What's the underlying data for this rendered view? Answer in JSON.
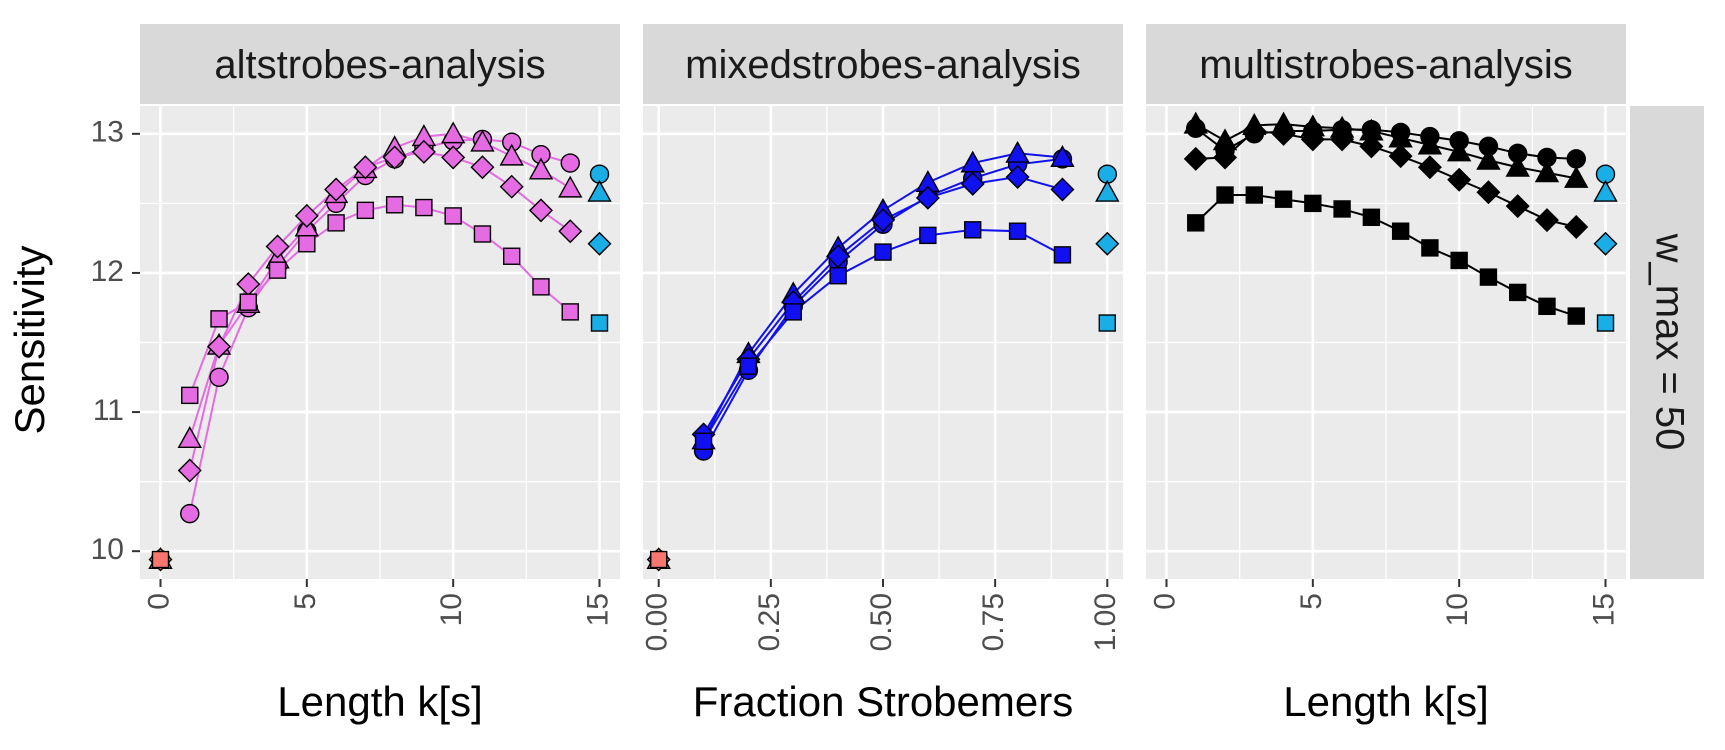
{
  "chart_data": {
    "type": "scatter",
    "y_label": "Sensitivity",
    "facet_label": "w_max = 50",
    "ylim": [
      9.8,
      13.2
    ],
    "y_ticks": [
      "10",
      "11",
      "12",
      "13"
    ],
    "y_tick_values": [
      10,
      11,
      12,
      13
    ],
    "colors": {
      "altstrobes": "#E56BE3",
      "mixedstrobes": "#1010F0",
      "multistrobes": "#000000",
      "reference": "#1AAEE6",
      "baseline": "#F8766D"
    },
    "marker_shapes": [
      "circle",
      "triangle",
      "diamond",
      "square"
    ],
    "panels": [
      {
        "title": "altstrobes-analysis",
        "xlabel": "Length k[s]",
        "xlim": [
          -0.7,
          15.7
        ],
        "x_ticks": [
          "0",
          "5",
          "10",
          "15"
        ],
        "x_tick_values": [
          0,
          5,
          10,
          15
        ],
        "color_key": "altstrobes",
        "baseline": {
          "x": 0,
          "y": 9.94
        },
        "reference_x": 15,
        "series": [
          {
            "shape": "circle",
            "x": [
              1,
              2,
              3,
              4,
              5,
              6,
              7,
              8,
              9,
              10,
              11,
              12,
              13,
              14
            ],
            "y": [
              10.27,
              11.25,
              11.75,
              12.05,
              12.3,
              12.5,
              12.7,
              12.82,
              12.9,
              12.95,
              12.96,
              12.94,
              12.85,
              12.79
            ]
          },
          {
            "shape": "triangle",
            "x": [
              1,
              2,
              3,
              4,
              5,
              6,
              7,
              8,
              9,
              10,
              11,
              12,
              13,
              14
            ],
            "y": [
              10.81,
              11.48,
              11.78,
              12.1,
              12.33,
              12.57,
              12.75,
              12.9,
              12.98,
              13.0,
              12.94,
              12.84,
              12.74,
              12.61
            ]
          },
          {
            "shape": "diamond",
            "x": [
              1,
              2,
              3,
              4,
              5,
              6,
              7,
              8,
              9,
              10,
              11,
              12,
              13,
              14
            ],
            "y": [
              10.58,
              11.47,
              11.92,
              12.19,
              12.41,
              12.6,
              12.76,
              12.83,
              12.87,
              12.83,
              12.76,
              12.62,
              12.45,
              12.3
            ]
          },
          {
            "shape": "square",
            "x": [
              1,
              2,
              3,
              4,
              5,
              6,
              7,
              8,
              9,
              10,
              11,
              12,
              13,
              14
            ],
            "y": [
              11.12,
              11.67,
              11.79,
              12.02,
              12.21,
              12.36,
              12.45,
              12.49,
              12.47,
              12.41,
              12.28,
              12.12,
              11.9,
              11.72
            ]
          }
        ]
      },
      {
        "title": "mixedstrobes-analysis",
        "xlabel": "Fraction Strobemers",
        "xlim": [
          -0.035,
          1.035
        ],
        "x_ticks": [
          "0.00",
          "0.25",
          "0.50",
          "0.75",
          "1.00"
        ],
        "x_tick_values": [
          0,
          0.25,
          0.5,
          0.75,
          1.0
        ],
        "color_key": "mixedstrobes",
        "baseline": {
          "x": 0,
          "y": 9.94
        },
        "reference_x": 1.0,
        "series": [
          {
            "shape": "circle",
            "x": [
              0.1,
              0.2,
              0.3,
              0.4,
              0.5,
              0.6,
              0.7,
              0.8,
              0.9
            ],
            "y": [
              10.72,
              11.3,
              11.76,
              12.08,
              12.35,
              12.55,
              12.68,
              12.78,
              12.82
            ]
          },
          {
            "shape": "triangle",
            "x": [
              0.1,
              0.2,
              0.3,
              0.4,
              0.5,
              0.6,
              0.7,
              0.8,
              0.9
            ],
            "y": [
              10.8,
              11.42,
              11.85,
              12.18,
              12.45,
              12.65,
              12.79,
              12.86,
              12.83
            ]
          },
          {
            "shape": "diamond",
            "x": [
              0.1,
              0.2,
              0.3,
              0.4,
              0.5,
              0.6,
              0.7,
              0.8,
              0.9
            ],
            "y": [
              10.84,
              11.38,
              11.79,
              12.12,
              12.38,
              12.54,
              12.64,
              12.69,
              12.6
            ]
          },
          {
            "shape": "square",
            "x": [
              0.1,
              0.2,
              0.3,
              0.4,
              0.5,
              0.6,
              0.7,
              0.8,
              0.9
            ],
            "y": [
              10.79,
              11.33,
              11.72,
              11.98,
              12.15,
              12.27,
              12.31,
              12.3,
              12.13
            ]
          }
        ]
      },
      {
        "title": "multistrobes-analysis",
        "xlabel": "Length k[s]",
        "xlim": [
          -0.7,
          15.7
        ],
        "x_ticks": [
          "0",
          "5",
          "10",
          "15"
        ],
        "x_tick_values": [
          0,
          5,
          10,
          15
        ],
        "color_key": "multistrobes",
        "baseline": null,
        "reference_x": 15,
        "series": [
          {
            "shape": "circle",
            "x": [
              1,
              2,
              3,
              4,
              5,
              6,
              7,
              8,
              9,
              10,
              11,
              12,
              13,
              14
            ],
            "y": [
              13.04,
              12.88,
              13.0,
              13.02,
              13.02,
              13.03,
              13.03,
              13.01,
              12.98,
              12.95,
              12.91,
              12.86,
              12.83,
              12.82
            ]
          },
          {
            "shape": "triangle",
            "x": [
              1,
              2,
              3,
              4,
              5,
              6,
              7,
              8,
              9,
              10,
              11,
              12,
              13,
              14
            ],
            "y": [
              13.07,
              12.95,
              13.06,
              13.07,
              13.05,
              13.04,
              13.02,
              12.97,
              12.92,
              12.87,
              12.81,
              12.76,
              12.72,
              12.68
            ]
          },
          {
            "shape": "diamond",
            "x": [
              1,
              2,
              3,
              4,
              5,
              6,
              7,
              8,
              9,
              10,
              11,
              12,
              13,
              14
            ],
            "y": [
              12.82,
              12.83,
              13.02,
              13.0,
              12.96,
              12.96,
              12.91,
              12.84,
              12.76,
              12.67,
              12.58,
              12.48,
              12.38,
              12.33
            ]
          },
          {
            "shape": "square",
            "x": [
              1,
              2,
              3,
              4,
              5,
              6,
              7,
              8,
              9,
              10,
              11,
              12,
              13,
              14
            ],
            "y": [
              12.36,
              12.56,
              12.56,
              12.53,
              12.5,
              12.46,
              12.4,
              12.3,
              12.18,
              12.09,
              11.97,
              11.86,
              11.76,
              11.69
            ]
          }
        ]
      }
    ],
    "reference_points": [
      {
        "shape": "circle",
        "y": 12.71
      },
      {
        "shape": "triangle",
        "y": 12.58
      },
      {
        "shape": "diamond",
        "y": 12.21
      },
      {
        "shape": "square",
        "y": 11.64
      }
    ],
    "baseline_markers": [
      "circle",
      "triangle",
      "diamond",
      "square"
    ]
  }
}
